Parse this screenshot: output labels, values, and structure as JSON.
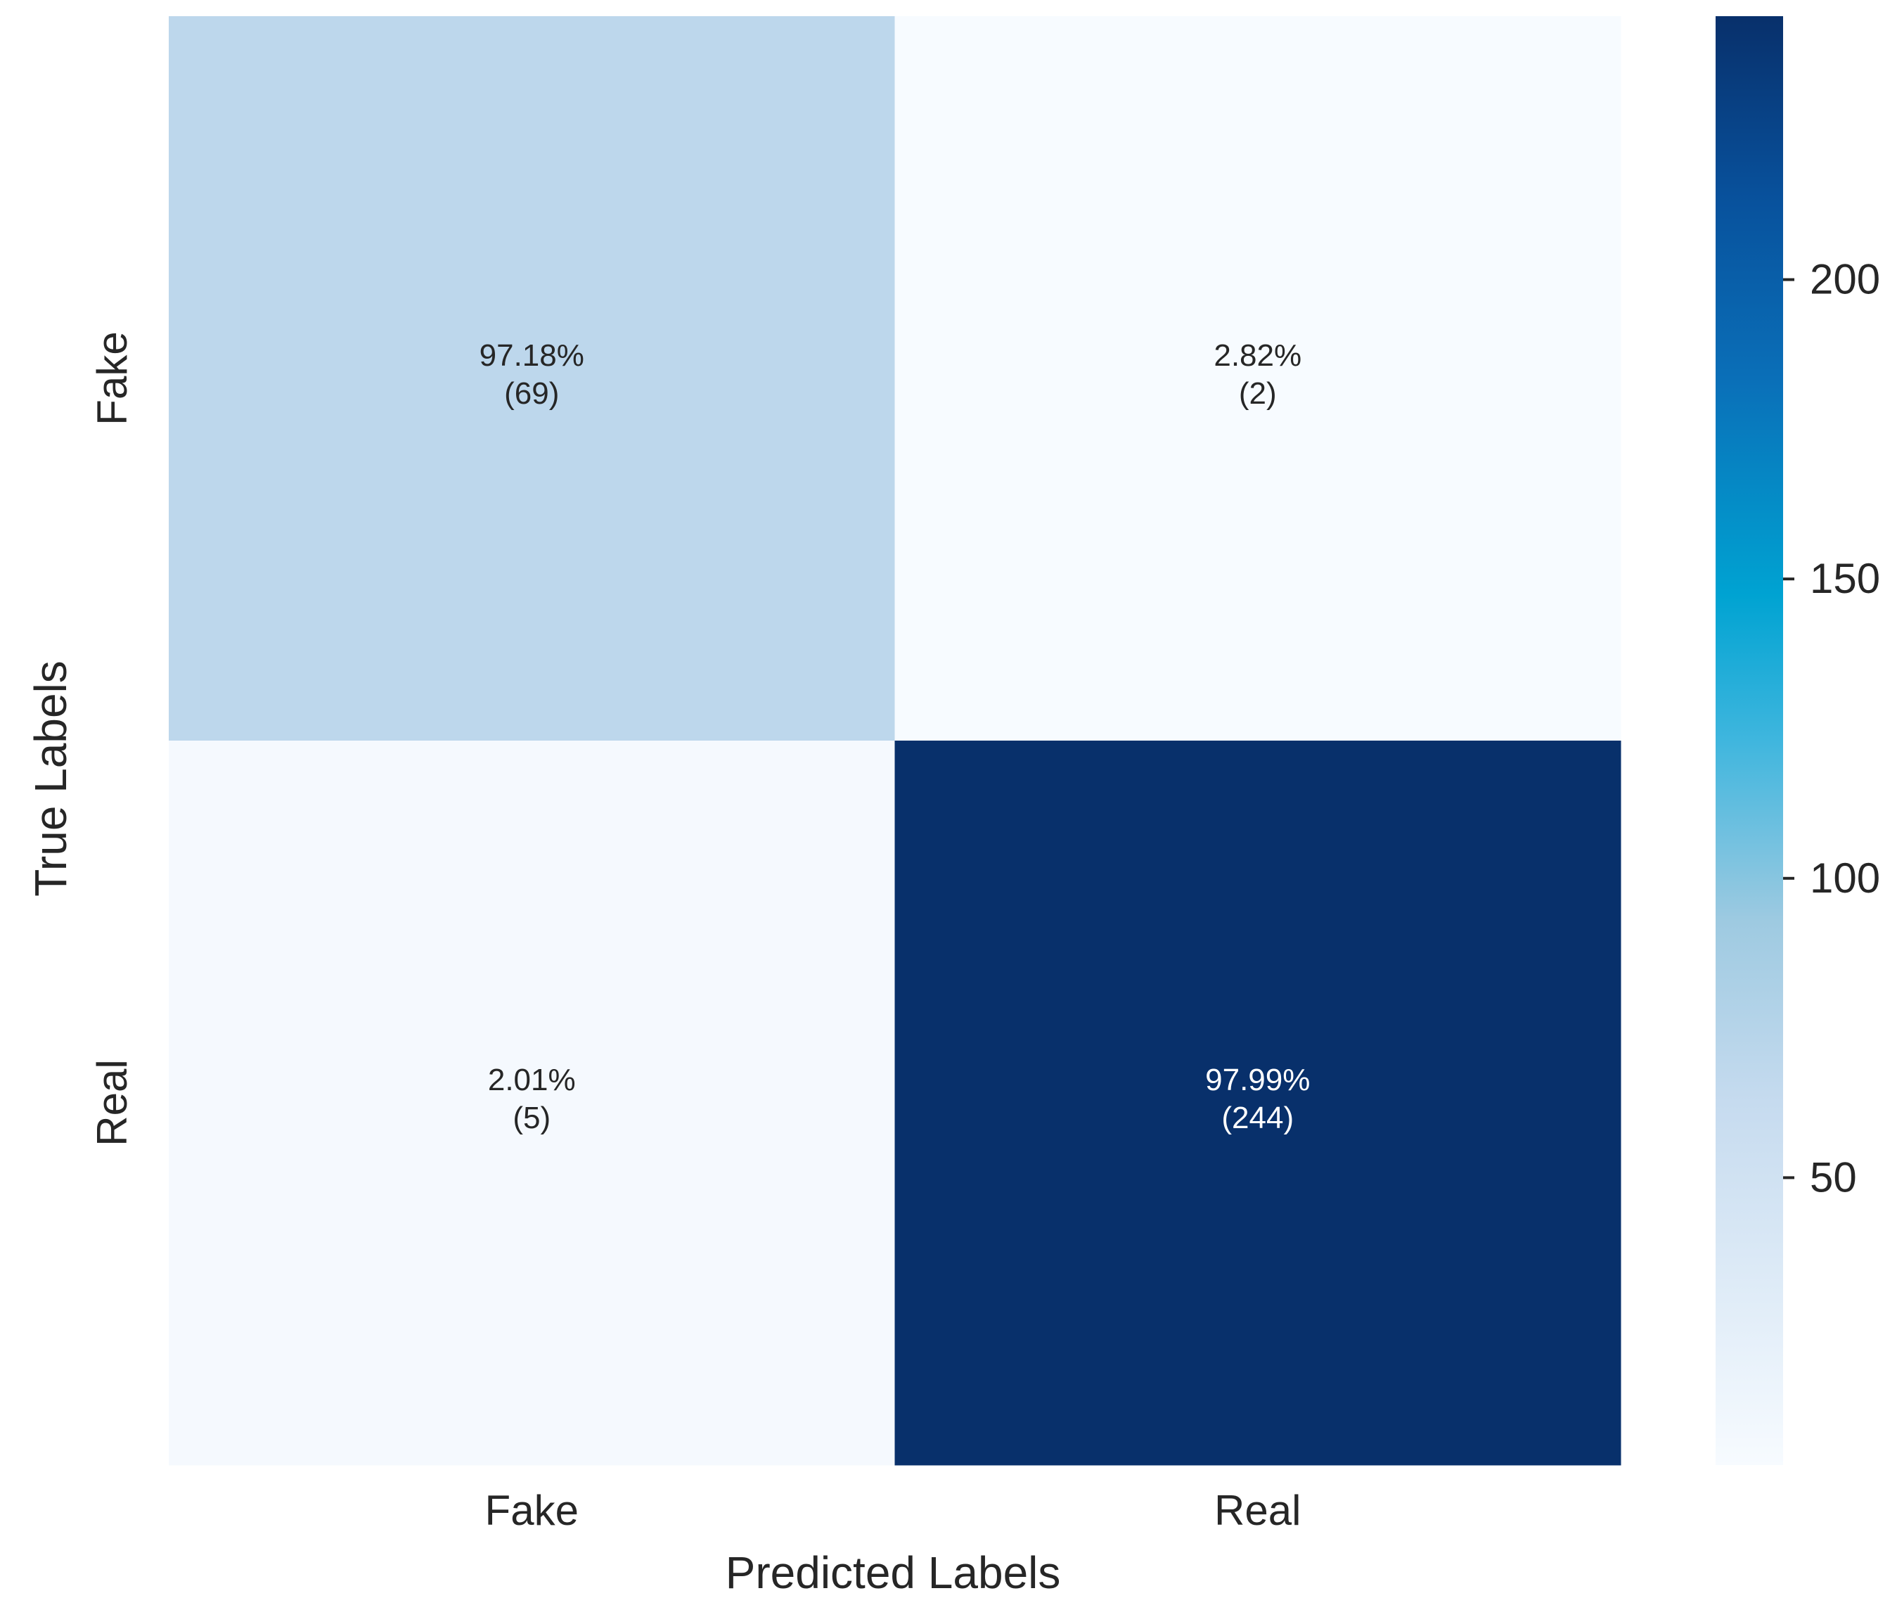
{
  "chart_data": {
    "type": "heatmap",
    "title": "",
    "xlabel": "Predicted Labels",
    "ylabel": "True Labels",
    "x_categories": [
      "Fake",
      "Real"
    ],
    "y_categories": [
      "Fake",
      "Real"
    ],
    "counts": [
      [
        69,
        2
      ],
      [
        5,
        244
      ]
    ],
    "percentages": [
      "97.18%",
      "2.82%",
      "2.01%",
      "97.99%"
    ],
    "cell_labels": [
      "(69)",
      "(2)",
      "(5)",
      "(244)"
    ],
    "colormap": "Blues",
    "colorbar": {
      "range": [
        2,
        244
      ],
      "ticks": [
        50,
        100,
        150,
        200
      ],
      "tick_labels": [
        "50",
        "100",
        "150",
        "200"
      ]
    }
  }
}
